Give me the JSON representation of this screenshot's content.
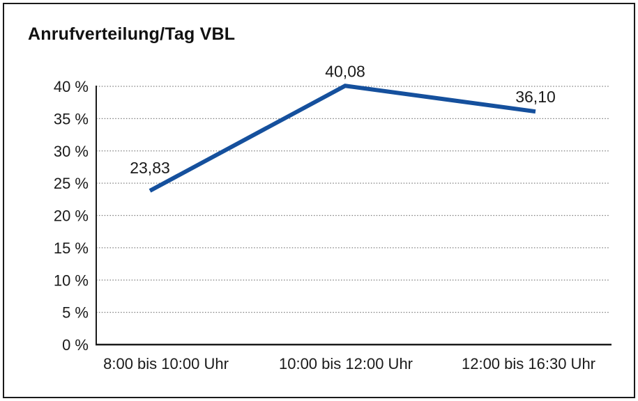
{
  "window": {
    "background_color": "#ffffff",
    "border_color": "#1a1a1a"
  },
  "chart_data": {
    "type": "line",
    "title": "Anrufverteilung/Tag VBL",
    "categories": [
      "8:00 bis 10:00 Uhr",
      "10:00 bis 12:00 Uhr",
      "12:00 bis 16:30 Uhr"
    ],
    "values": [
      23.83,
      40.08,
      36.1
    ],
    "value_labels": [
      "23,83",
      "40,08",
      "36,10"
    ],
    "unit": "%",
    "ylim": [
      0,
      40
    ],
    "y_tick_step": 5,
    "y_ticks": [
      0,
      5,
      10,
      15,
      20,
      25,
      30,
      35,
      40
    ],
    "y_tick_labels": [
      "0 %",
      "5 %",
      "10 %",
      "15 %",
      "20 %",
      "25 %",
      "30 %",
      "35 %",
      "40 %"
    ],
    "xlabel": "",
    "ylabel": "",
    "grid": "horizontal-dotted",
    "legend": "none",
    "line_color": "#15509D",
    "text_color": "#1a1a1a",
    "grid_color": "#7d7d7d"
  }
}
